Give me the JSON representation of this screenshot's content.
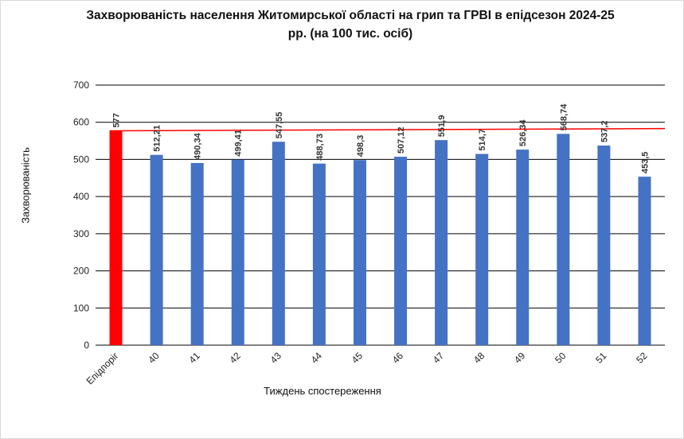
{
  "chart_data": {
    "type": "bar",
    "title_line1": "Захворюваність населення Житомирської області на грип та ГРВІ в епідсезон 2024-25",
    "title_line2": "рр.  (на 100 тис. осіб)",
    "xlabel": "Тиждень спостереження",
    "ylabel": "Захворюваність",
    "ylim": [
      0,
      700
    ],
    "yticks": [
      0,
      100,
      200,
      300,
      400,
      500,
      600,
      700
    ],
    "grid": true,
    "legend": "none",
    "categories": [
      "Епідпоріг",
      "40",
      "41",
      "42",
      "43",
      "44",
      "45",
      "46",
      "47",
      "48",
      "49",
      "50",
      "51",
      "52"
    ],
    "values": [
      577,
      512.21,
      490.34,
      499.41,
      547.55,
      488.73,
      498.3,
      507.12,
      551.9,
      514.7,
      526.34,
      568.74,
      537.2,
      453.5
    ],
    "data_labels": [
      "577",
      "512,21",
      "490,34",
      "499,41",
      "547,55",
      "488,73",
      "498,3",
      "507,12",
      "551,9",
      "514,7",
      "526,34",
      "568,74",
      "537,2",
      "453,5"
    ],
    "threshold_line": {
      "start_value": 577,
      "end_value": 583,
      "color": "#ff0000"
    },
    "colors": {
      "threshold_bar": "#ff0000",
      "bars": "#4472c4",
      "grid": "#000000"
    }
  }
}
